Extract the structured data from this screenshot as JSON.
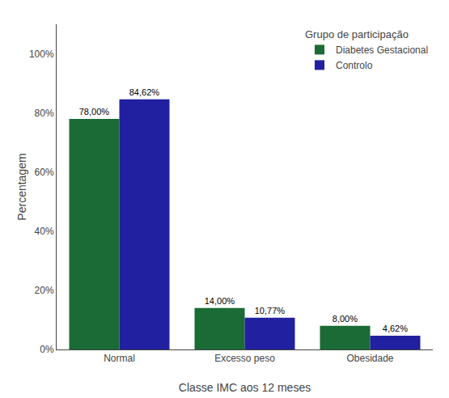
{
  "chart_data": {
    "type": "bar",
    "xlabel": "Classe IMC aos 12 meses",
    "ylabel": "Percentagem",
    "legend_title": "Grupo de participação",
    "categories": [
      "Normal",
      "Excesso peso",
      "Obesidade"
    ],
    "series": [
      {
        "name": "Diabetes Gestacional",
        "color": "#1a6b35",
        "values": [
          78.0,
          14.0,
          8.0
        ],
        "value_labels": [
          "78,00%",
          "14,00%",
          "8,00%"
        ]
      },
      {
        "name": "Controlo",
        "color": "#2020a0",
        "values": [
          84.62,
          10.77,
          4.62
        ],
        "value_labels": [
          "84,62%",
          "10,77%",
          "4,62%"
        ]
      }
    ],
    "ylim": [
      0,
      110
    ],
    "yticks": [
      {
        "value": 0,
        "label": "0%"
      },
      {
        "value": 20,
        "label": "20%"
      },
      {
        "value": 40,
        "label": "40%"
      },
      {
        "value": 60,
        "label": "60%"
      },
      {
        "value": 80,
        "label": "80%"
      },
      {
        "value": 100,
        "label": "100%"
      }
    ],
    "grid": false,
    "legend": "upper right",
    "data_labels": true
  }
}
